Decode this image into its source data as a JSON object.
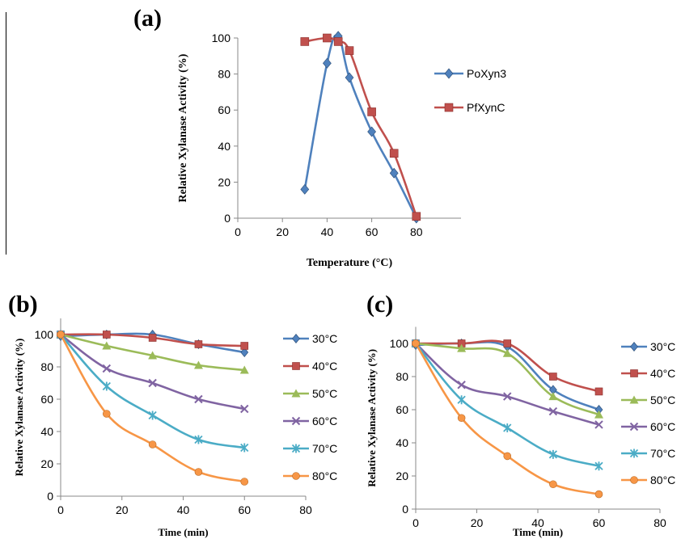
{
  "labels": {
    "a": "(a)",
    "b": "(b)",
    "c": "(c)"
  },
  "chart_data": [
    {
      "type": "line",
      "panel": "a",
      "xlabel": "Temperature (°C)",
      "ylabel": "Relative Xylanase Activity (%)",
      "xlim": [
        0,
        100
      ],
      "ylim": [
        0,
        100
      ],
      "xticks": [
        0,
        20,
        40,
        60,
        80
      ],
      "yticks": [
        0,
        20,
        40,
        60,
        80,
        100
      ],
      "grid": false,
      "legend": "right",
      "series": [
        {
          "name": "PoXyn3",
          "color": "#4F81BD",
          "marker": "diamond",
          "x": [
            30,
            40,
            45,
            50,
            60,
            70,
            80
          ],
          "y": [
            16,
            86,
            101,
            78,
            48,
            25,
            0
          ]
        },
        {
          "name": "PfXynC",
          "color": "#C0504D",
          "marker": "square",
          "x": [
            30,
            40,
            45,
            50,
            60,
            70,
            80
          ],
          "y": [
            98,
            100,
            98,
            93,
            59,
            36,
            1
          ]
        }
      ]
    },
    {
      "type": "line",
      "panel": "b",
      "xlabel": "Time (min)",
      "ylabel": "Relative Xylanase Activity (%)",
      "xlim": [
        0,
        80
      ],
      "ylim": [
        0,
        110
      ],
      "xticks": [
        0,
        20,
        40,
        60,
        80
      ],
      "yticks": [
        0,
        20,
        40,
        60,
        80,
        100
      ],
      "grid": false,
      "legend": "right",
      "series": [
        {
          "name": "30°C",
          "color": "#4F81BD",
          "marker": "diamond",
          "x": [
            0,
            15,
            30,
            45,
            60
          ],
          "y": [
            99,
            100,
            100,
            94,
            89
          ]
        },
        {
          "name": "40°C",
          "color": "#C0504D",
          "marker": "square",
          "x": [
            0,
            15,
            30,
            45,
            60
          ],
          "y": [
            100,
            100,
            98,
            94,
            93
          ]
        },
        {
          "name": "50°C",
          "color": "#9BBB59",
          "marker": "triangle",
          "x": [
            0,
            15,
            30,
            45,
            60
          ],
          "y": [
            100,
            93,
            87,
            81,
            78
          ]
        },
        {
          "name": "60°C",
          "color": "#8064A2",
          "marker": "x",
          "x": [
            0,
            15,
            30,
            45,
            60
          ],
          "y": [
            100,
            79,
            70,
            60,
            54
          ]
        },
        {
          "name": "70°C",
          "color": "#4BACC6",
          "marker": "star",
          "x": [
            0,
            15,
            30,
            45,
            60
          ],
          "y": [
            100,
            68,
            50,
            35,
            30
          ]
        },
        {
          "name": "80°C",
          "color": "#F79646",
          "marker": "circle",
          "x": [
            0,
            15,
            30,
            45,
            60
          ],
          "y": [
            100,
            51,
            32,
            15,
            9
          ]
        }
      ]
    },
    {
      "type": "line",
      "panel": "c",
      "xlabel": "Time (min)",
      "ylabel": "Relative Xylanase Activity (%)",
      "xlim": [
        0,
        80
      ],
      "ylim": [
        0,
        110
      ],
      "xticks": [
        0,
        20,
        40,
        60,
        80
      ],
      "yticks": [
        0,
        20,
        40,
        60,
        80,
        100
      ],
      "grid": false,
      "legend": "right",
      "series": [
        {
          "name": "30°C",
          "color": "#4F81BD",
          "marker": "diamond",
          "x": [
            0,
            15,
            30,
            45,
            60
          ],
          "y": [
            99,
            100,
            98,
            72,
            60
          ]
        },
        {
          "name": "40°C",
          "color": "#C0504D",
          "marker": "square",
          "x": [
            0,
            15,
            30,
            45,
            60
          ],
          "y": [
            100,
            100,
            100,
            80,
            71
          ]
        },
        {
          "name": "50°C",
          "color": "#9BBB59",
          "marker": "triangle",
          "x": [
            0,
            15,
            30,
            45,
            60
          ],
          "y": [
            100,
            97,
            94,
            68,
            57
          ]
        },
        {
          "name": "60°C",
          "color": "#8064A2",
          "marker": "x",
          "x": [
            0,
            15,
            30,
            45,
            60
          ],
          "y": [
            100,
            75,
            68,
            59,
            51
          ]
        },
        {
          "name": "70°C",
          "color": "#4BACC6",
          "marker": "star",
          "x": [
            0,
            15,
            30,
            45,
            60
          ],
          "y": [
            100,
            66,
            49,
            33,
            26
          ]
        },
        {
          "name": "80°C",
          "color": "#F79646",
          "marker": "circle",
          "x": [
            0,
            15,
            30,
            45,
            60
          ],
          "y": [
            100,
            55,
            32,
            15,
            9
          ]
        }
      ]
    }
  ]
}
